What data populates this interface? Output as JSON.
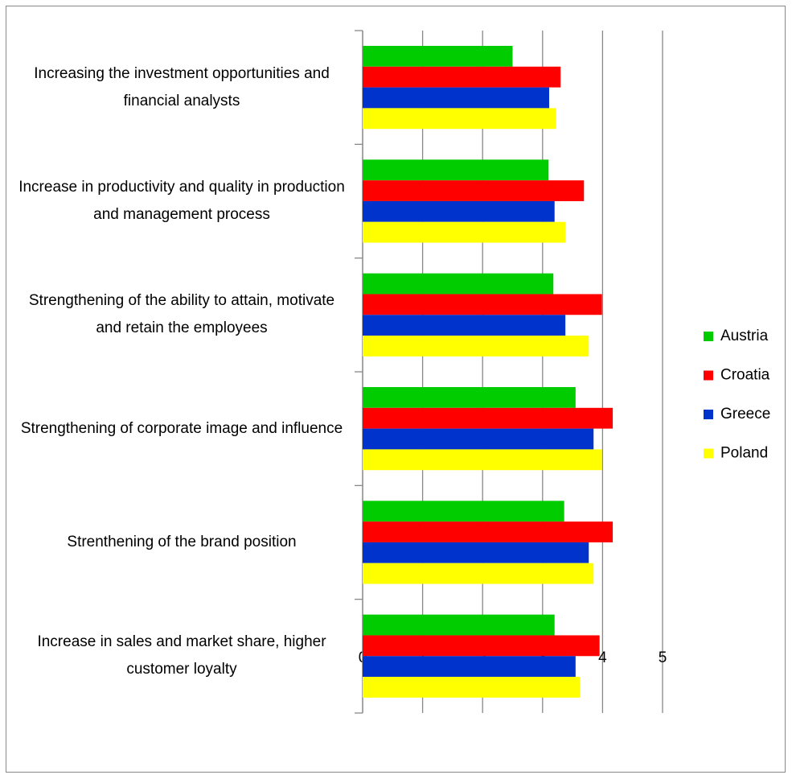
{
  "chart_data": {
    "type": "hbar",
    "categories": [
      "Increasing the investment opportunities and financial analysts",
      "Increase in productivity and quality in production and management process",
      "Strengthening of the ability to attain, motivate and retain the employees",
      "Strengthening of corporate image and influence",
      "Strenthening of the brand position",
      "Increase in sales and market share, higher customer loyalty"
    ],
    "series": [
      {
        "name": "Austria",
        "color": "#00cc00",
        "values": [
          2.5,
          3.1,
          3.18,
          3.55,
          3.36,
          3.2
        ]
      },
      {
        "name": "Croatia",
        "color": "#ff0000",
        "values": [
          3.3,
          3.69,
          3.99,
          4.17,
          4.17,
          3.95
        ]
      },
      {
        "name": "Greece",
        "color": "#0033cc",
        "values": [
          3.11,
          3.2,
          3.38,
          3.85,
          3.77,
          3.55
        ]
      },
      {
        "name": "Poland",
        "color": "#ffff00",
        "values": [
          3.22,
          3.38,
          3.77,
          3.99,
          3.85,
          3.62
        ]
      }
    ],
    "xlim": [
      0,
      5
    ],
    "xticks": [
      0,
      1,
      2,
      3,
      4,
      5
    ],
    "grid": true,
    "legend": "right"
  }
}
